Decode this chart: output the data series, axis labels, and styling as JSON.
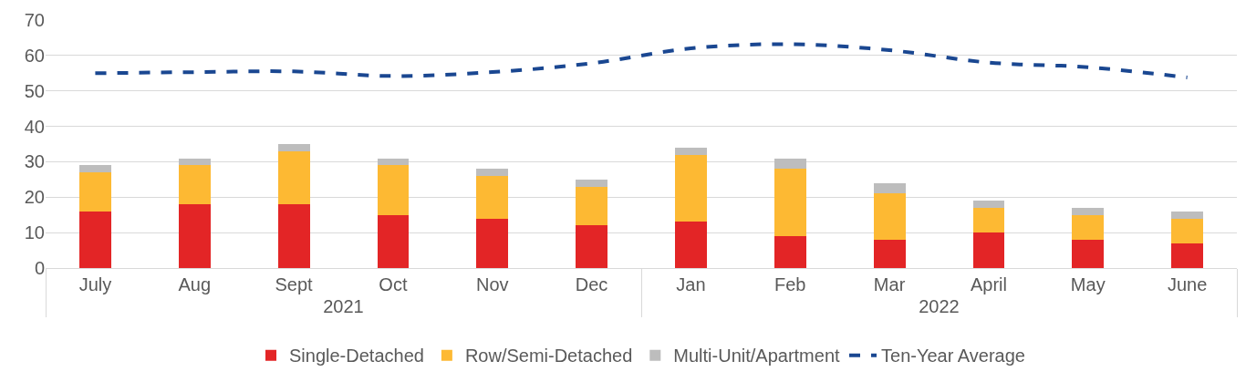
{
  "chart_data": {
    "type": "bar",
    "stacked": true,
    "categories": [
      "July",
      "Aug",
      "Sept",
      "Oct",
      "Nov",
      "Dec",
      "Jan",
      "Feb",
      "Mar",
      "April",
      "May",
      "June"
    ],
    "annotations": [
      "2021",
      "2022"
    ],
    "series": [
      {
        "name": "Single-Detached",
        "color": "#e32526",
        "values": [
          16,
          18,
          18,
          15,
          14,
          12,
          13,
          9,
          8,
          10,
          8,
          7
        ]
      },
      {
        "name": "Row/Semi-Detached",
        "color": "#fdb933",
        "values": [
          11,
          11,
          15,
          14,
          12,
          11,
          19,
          19,
          13,
          7,
          7,
          7
        ]
      },
      {
        "name": "Multi-Unit/Apartment",
        "color": "#bdbdbd",
        "values": [
          2,
          2,
          2,
          2,
          2,
          2,
          2,
          3,
          3,
          2,
          2,
          2
        ]
      },
      {
        "name": "Ten-Year Average",
        "color": "#1a4791",
        "type": "line",
        "line_style": "dashed",
        "values": [
          55,
          55.3,
          55.5,
          54.2,
          55.3,
          57.8,
          62,
          63.2,
          61.5,
          58,
          56.7,
          53.8
        ]
      }
    ],
    "ylim": [
      0,
      70
    ],
    "yticks": [
      0,
      10,
      20,
      30,
      40,
      50,
      60,
      70
    ],
    "grid": "y",
    "legend": "bottom"
  }
}
